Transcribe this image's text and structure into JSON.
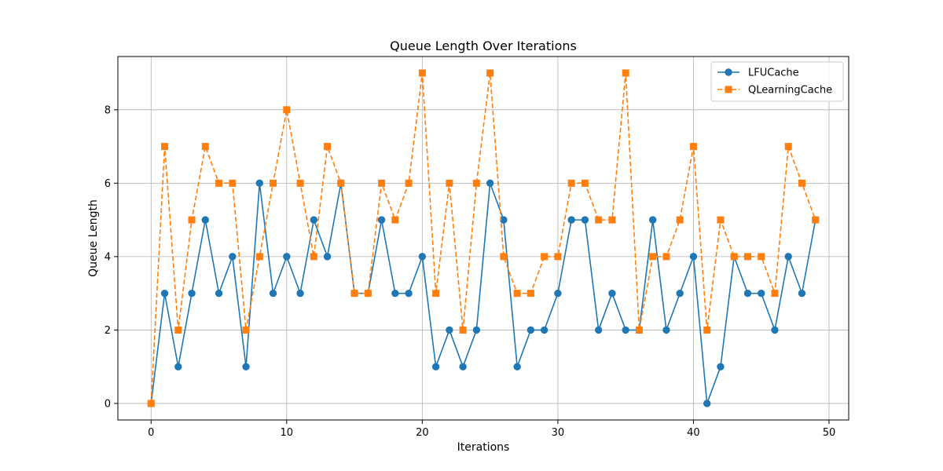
{
  "chart_data": {
    "type": "line",
    "title": "Queue Length Over Iterations",
    "xlabel": "Iterations",
    "ylabel": "Queue Length",
    "xlim": [
      -2.45,
      51.45
    ],
    "ylim": [
      -0.45,
      9.45
    ],
    "xticks": [
      0,
      10,
      20,
      30,
      40,
      50
    ],
    "yticks": [
      0,
      2,
      4,
      6,
      8
    ],
    "grid": true,
    "legend_position": "top-right",
    "x": [
      0,
      1,
      2,
      3,
      4,
      5,
      6,
      7,
      8,
      9,
      10,
      11,
      12,
      13,
      14,
      15,
      16,
      17,
      18,
      19,
      20,
      21,
      22,
      23,
      24,
      25,
      26,
      27,
      28,
      29,
      30,
      31,
      32,
      33,
      34,
      35,
      36,
      37,
      38,
      39,
      40,
      41,
      42,
      43,
      44,
      45,
      46,
      47,
      48,
      49
    ],
    "series": [
      {
        "name": "LFUCache",
        "color": "#1f77b4",
        "marker": "circle",
        "linestyle": "solid",
        "values": [
          0,
          3,
          1,
          3,
          5,
          3,
          4,
          1,
          6,
          3,
          4,
          3,
          5,
          4,
          6,
          3,
          3,
          5,
          3,
          3,
          4,
          1,
          2,
          1,
          2,
          6,
          5,
          1,
          2,
          2,
          3,
          5,
          5,
          2,
          3,
          2,
          2,
          5,
          2,
          3,
          4,
          0,
          1,
          4,
          3,
          3,
          2,
          4,
          3,
          5
        ]
      },
      {
        "name": "QLearningCache",
        "color": "#ff7f0e",
        "marker": "square",
        "linestyle": "dashed",
        "values": [
          0,
          7,
          2,
          5,
          7,
          6,
          6,
          2,
          4,
          6,
          8,
          6,
          4,
          7,
          6,
          3,
          3,
          6,
          5,
          6,
          9,
          3,
          6,
          2,
          6,
          9,
          4,
          3,
          3,
          4,
          4,
          6,
          6,
          5,
          5,
          9,
          2,
          4,
          4,
          5,
          7,
          2,
          5,
          4,
          4,
          4,
          3,
          7,
          6,
          5
        ]
      }
    ]
  }
}
